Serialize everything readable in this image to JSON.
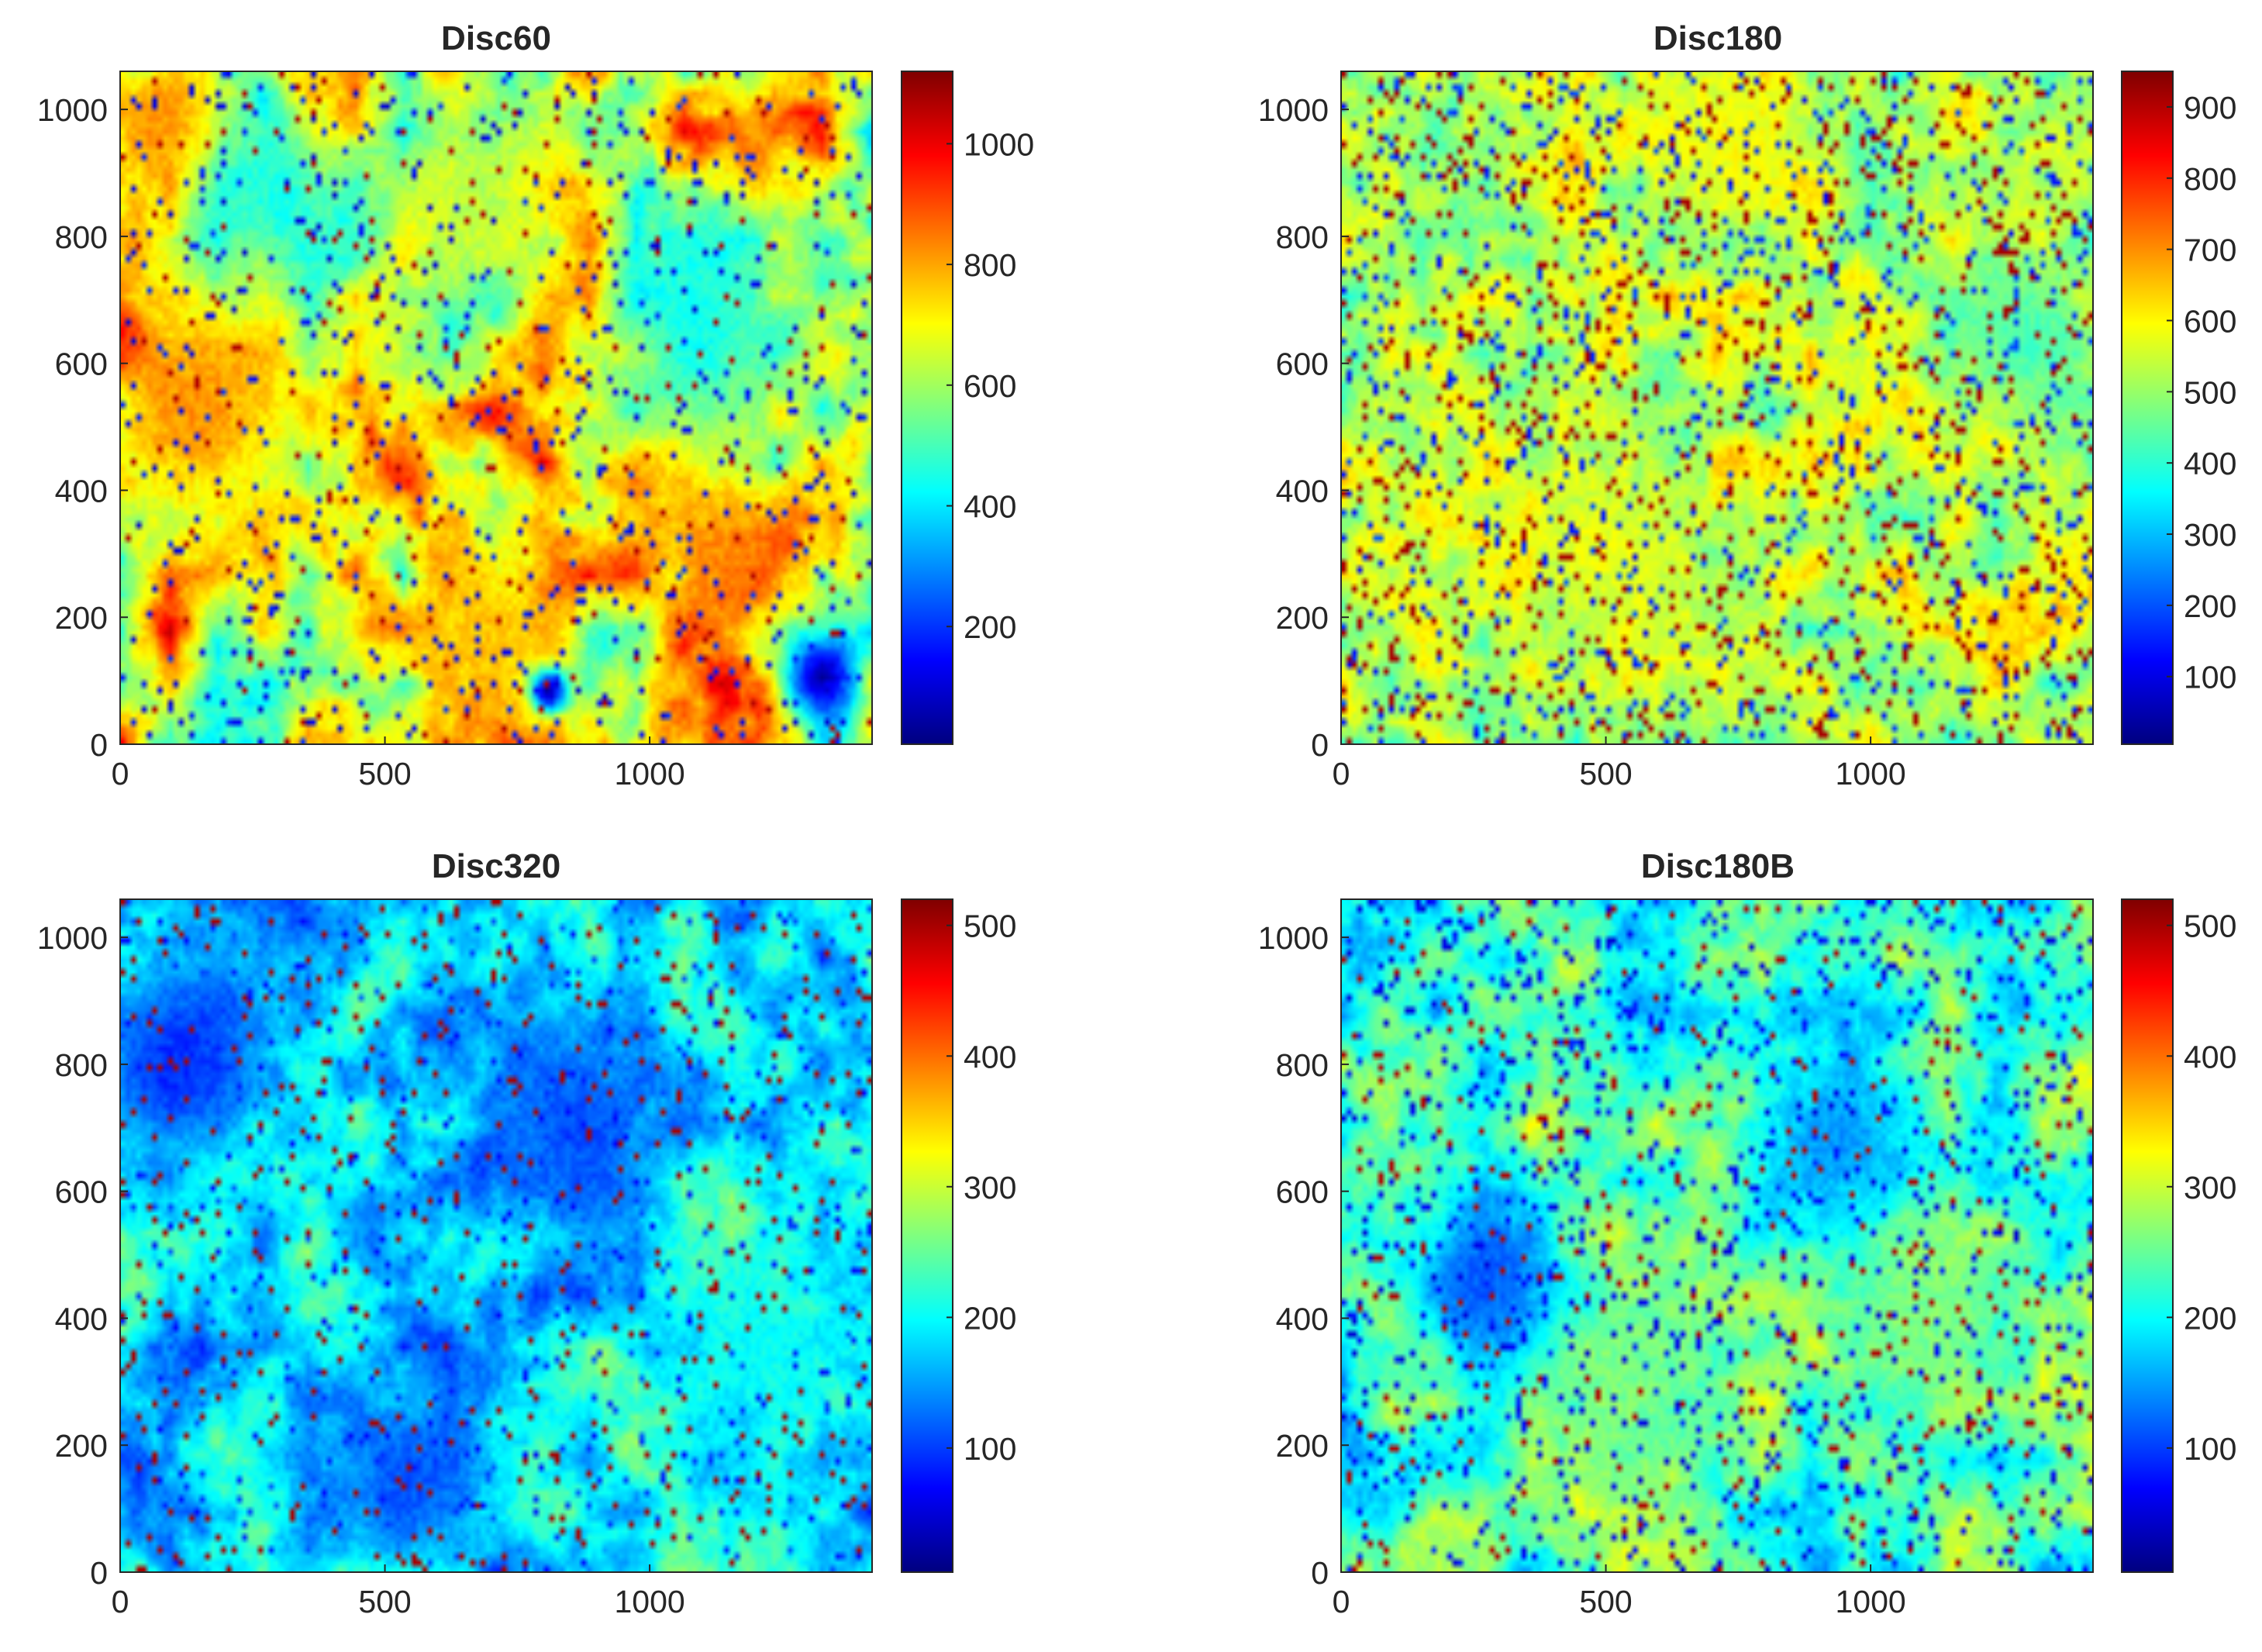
{
  "colormap": "jet",
  "colors": {
    "jet_stops": [
      "#00007f",
      "#0000ff",
      "#007fff",
      "#00ffff",
      "#7fff7f",
      "#ffff00",
      "#ff7f00",
      "#ff0000",
      "#7f0000"
    ]
  },
  "chart_data": [
    {
      "type": "heatmap",
      "title": "Disc60",
      "xlabel": "",
      "ylabel": "",
      "xlim": [
        0,
        1420
      ],
      "ylim": [
        0,
        1060
      ],
      "xticks": [
        0,
        500,
        1000
      ],
      "yticks": [
        0,
        200,
        400,
        600,
        800,
        1000
      ],
      "colorbar": {
        "range": [
          5,
          1120
        ],
        "ticks": [
          200,
          400,
          600,
          800,
          1000
        ]
      },
      "field": {
        "base": 0.62,
        "amp": 0.28,
        "noise": 0.1,
        "speckle": 0.06,
        "speckle_low": true,
        "seed": 11
      },
      "regions": [
        {
          "label": "high",
          "x": 150,
          "y": 520,
          "r": 260,
          "value": 820
        },
        {
          "label": "high",
          "x": 1130,
          "y": 300,
          "r": 180,
          "value": 850
        },
        {
          "label": "high",
          "x": 700,
          "y": 180,
          "r": 200,
          "value": 770
        },
        {
          "label": "high",
          "x": 80,
          "y": 980,
          "r": 150,
          "value": 840
        },
        {
          "label": "mid",
          "x": 680,
          "y": 880,
          "r": 220,
          "value": 620
        },
        {
          "label": "low",
          "x": 300,
          "y": 860,
          "r": 200,
          "value": 450
        },
        {
          "label": "low",
          "x": 1100,
          "y": 650,
          "r": 260,
          "value": 440
        },
        {
          "label": "low",
          "x": 1330,
          "y": 100,
          "r": 90,
          "value": 60
        },
        {
          "label": "low",
          "x": 810,
          "y": 80,
          "r": 45,
          "value": 60
        }
      ]
    },
    {
      "type": "heatmap",
      "title": "Disc180",
      "xlabel": "",
      "ylabel": "",
      "xlim": [
        0,
        1420
      ],
      "ylim": [
        0,
        1060
      ],
      "xticks": [
        0,
        500,
        1000
      ],
      "yticks": [
        0,
        200,
        400,
        600,
        800,
        1000
      ],
      "colorbar": {
        "range": [
          5,
          950
        ],
        "ticks": [
          100,
          200,
          300,
          400,
          500,
          600,
          700,
          800,
          900
        ]
      },
      "field": {
        "base": 0.56,
        "amp": 0.1,
        "noise": 0.08,
        "speckle": 0.13,
        "speckle_low": false,
        "seed": 23
      },
      "regions": [
        {
          "label": "mid",
          "x": 500,
          "y": 300,
          "r": 200,
          "value": 580
        },
        {
          "label": "mid",
          "x": 750,
          "y": 950,
          "r": 180,
          "value": 590
        },
        {
          "label": "mid",
          "x": 1300,
          "y": 650,
          "r": 200,
          "value": 430
        }
      ]
    },
    {
      "type": "heatmap",
      "title": "Disc320",
      "xlabel": "",
      "ylabel": "",
      "xlim": [
        0,
        1420
      ],
      "ylim": [
        0,
        1060
      ],
      "xticks": [
        0,
        500,
        1000
      ],
      "yticks": [
        0,
        200,
        400,
        600,
        800,
        1000
      ],
      "colorbar": {
        "range": [
          5,
          520
        ],
        "ticks": [
          100,
          200,
          300,
          400,
          500
        ]
      },
      "field": {
        "base": 0.36,
        "amp": 0.14,
        "noise": 0.08,
        "speckle": 0.07,
        "speckle_low": false,
        "seed": 37
      },
      "regions": [
        {
          "label": "low",
          "x": 100,
          "y": 800,
          "r": 220,
          "value": 90
        },
        {
          "label": "low",
          "x": 850,
          "y": 700,
          "r": 230,
          "value": 110
        },
        {
          "label": "low",
          "x": 550,
          "y": 150,
          "r": 200,
          "value": 110
        },
        {
          "label": "mid",
          "x": 1200,
          "y": 350,
          "r": 220,
          "value": 200
        }
      ]
    },
    {
      "type": "heatmap",
      "title": "Disc180B",
      "xlabel": "",
      "ylabel": "",
      "xlim": [
        0,
        1420
      ],
      "ylim": [
        0,
        1060
      ],
      "xticks": [
        0,
        500,
        1000
      ],
      "yticks": [
        0,
        200,
        400,
        600,
        800,
        1000
      ],
      "colorbar": {
        "range": [
          5,
          520
        ],
        "ticks": [
          100,
          200,
          300,
          400,
          500
        ]
      },
      "field": {
        "base": 0.45,
        "amp": 0.14,
        "noise": 0.08,
        "speckle": 0.1,
        "speckle_low": true,
        "seed": 53
      },
      "regions": [
        {
          "label": "low",
          "x": 280,
          "y": 450,
          "r": 180,
          "value": 110
        },
        {
          "label": "low",
          "x": 950,
          "y": 680,
          "r": 180,
          "value": 140
        },
        {
          "label": "mid",
          "x": 550,
          "y": 300,
          "r": 220,
          "value": 260
        },
        {
          "label": "mid",
          "x": 1100,
          "y": 400,
          "r": 220,
          "value": 260
        }
      ]
    }
  ]
}
